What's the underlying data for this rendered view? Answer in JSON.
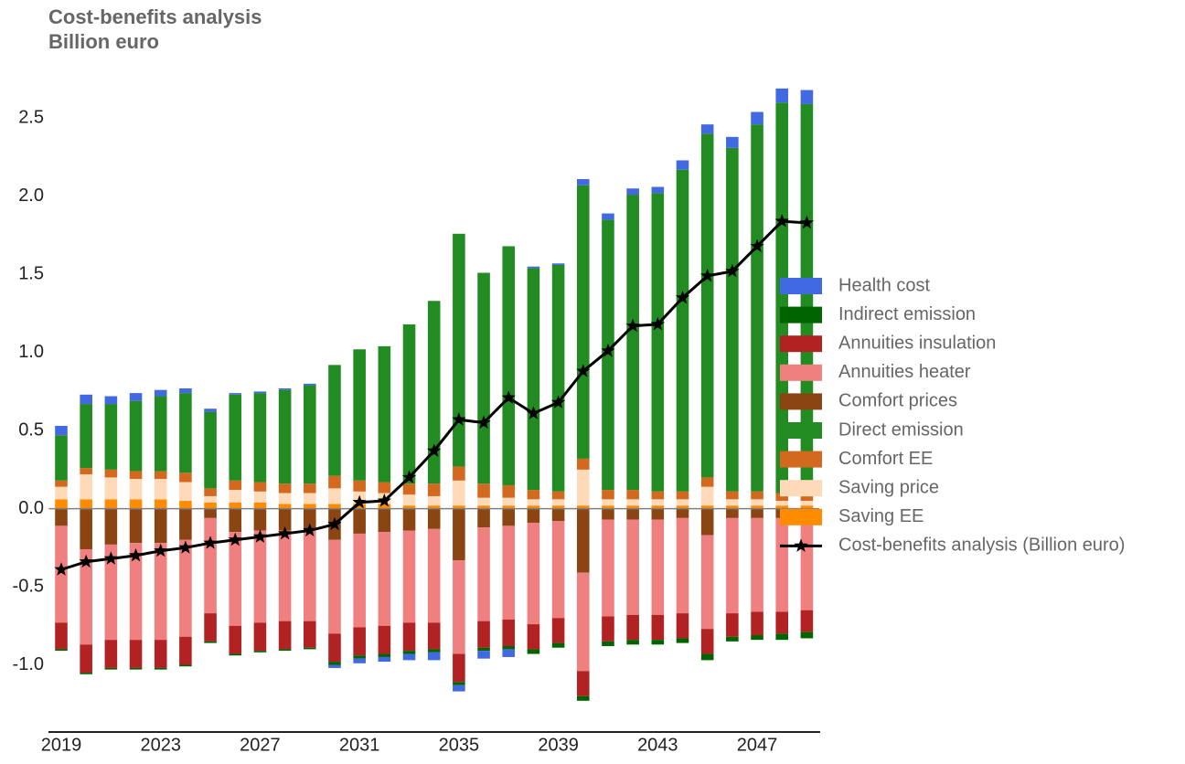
{
  "chart_data": {
    "type": "bar",
    "stacked": true,
    "title": "Cost-benefits analysis",
    "subtitle": "Billion euro",
    "categories": [
      2019,
      null,
      null,
      null,
      2023,
      null,
      null,
      null,
      2027,
      null,
      null,
      null,
      2031,
      null,
      null,
      null,
      2035,
      null,
      null,
      null,
      2039,
      null,
      null,
      null,
      2043,
      null,
      null,
      null,
      2047,
      null,
      null
    ],
    "series": [
      {
        "name": "Saving EE",
        "color": "#ff8c00",
        "values": [
          0.06,
          0.06,
          0.06,
          0.06,
          0.06,
          0.05,
          0.04,
          0.04,
          0.04,
          0.03,
          0.03,
          0.03,
          0.03,
          0.03,
          0.02,
          0.02,
          0.02,
          0.02,
          0.02,
          0.02,
          0.02,
          0.02,
          0.02,
          0.02,
          0.02,
          0.02,
          0.02,
          0.02,
          0.02,
          0.02,
          0.02
        ]
      },
      {
        "name": "Saving price",
        "color": "#ffdab9",
        "values": [
          0.08,
          0.16,
          0.14,
          0.13,
          0.13,
          0.12,
          0.04,
          0.08,
          0.07,
          0.07,
          0.07,
          0.1,
          0.08,
          0.07,
          0.07,
          0.06,
          0.16,
          0.05,
          0.05,
          0.04,
          0.04,
          0.23,
          0.04,
          0.04,
          0.04,
          0.04,
          0.12,
          0.04,
          0.04,
          0.03,
          0.03
        ]
      },
      {
        "name": "Comfort EE",
        "color": "#d2691e",
        "values": [
          0.04,
          0.04,
          0.05,
          0.05,
          0.05,
          0.06,
          0.05,
          0.06,
          0.06,
          0.06,
          0.06,
          0.08,
          0.07,
          0.07,
          0.07,
          0.08,
          0.09,
          0.09,
          0.08,
          0.06,
          0.05,
          0.07,
          0.06,
          0.06,
          0.05,
          0.05,
          0.06,
          0.05,
          0.05,
          0.05,
          0.05
        ]
      },
      {
        "name": "Direct emission",
        "color": "#228b22",
        "values": [
          0.29,
          0.41,
          0.42,
          0.45,
          0.48,
          0.51,
          0.49,
          0.55,
          0.57,
          0.6,
          0.63,
          0.71,
          0.84,
          0.87,
          1.02,
          1.17,
          1.49,
          1.35,
          1.53,
          1.42,
          1.45,
          1.75,
          1.73,
          1.89,
          1.91,
          2.06,
          2.2,
          2.2,
          2.35,
          2.5,
          2.49
        ]
      },
      {
        "name": "Comfort prices",
        "color": "#8b4513",
        "values": [
          -0.11,
          -0.26,
          -0.23,
          -0.22,
          -0.22,
          -0.2,
          -0.06,
          -0.15,
          -0.14,
          -0.14,
          -0.14,
          -0.2,
          -0.16,
          -0.15,
          -0.14,
          -0.13,
          -0.33,
          -0.12,
          -0.11,
          -0.09,
          -0.08,
          -0.41,
          -0.07,
          -0.07,
          -0.07,
          -0.06,
          -0.17,
          -0.06,
          -0.06,
          -0.06,
          -0.06
        ]
      },
      {
        "name": "Annuities heater",
        "color": "#f08080",
        "values": [
          -0.62,
          -0.61,
          -0.61,
          -0.62,
          -0.62,
          -0.62,
          -0.61,
          -0.6,
          -0.59,
          -0.58,
          -0.58,
          -0.6,
          -0.6,
          -0.6,
          -0.59,
          -0.6,
          -0.6,
          -0.6,
          -0.6,
          -0.65,
          -0.62,
          -0.63,
          -0.62,
          -0.61,
          -0.61,
          -0.61,
          -0.6,
          -0.61,
          -0.6,
          -0.6,
          -0.59
        ]
      },
      {
        "name": "Annuities insulation",
        "color": "#b22222",
        "values": [
          -0.17,
          -0.18,
          -0.18,
          -0.18,
          -0.18,
          -0.18,
          -0.18,
          -0.18,
          -0.18,
          -0.18,
          -0.17,
          -0.18,
          -0.18,
          -0.18,
          -0.18,
          -0.17,
          -0.18,
          -0.17,
          -0.17,
          -0.16,
          -0.16,
          -0.16,
          -0.16,
          -0.16,
          -0.16,
          -0.16,
          -0.16,
          -0.15,
          -0.15,
          -0.14,
          -0.14
        ]
      },
      {
        "name": "Indirect emission",
        "color": "#006400",
        "values": [
          -0.01,
          -0.01,
          -0.01,
          -0.01,
          -0.01,
          -0.01,
          -0.01,
          -0.01,
          -0.01,
          -0.01,
          -0.01,
          -0.02,
          -0.02,
          -0.02,
          -0.02,
          -0.02,
          -0.02,
          -0.02,
          -0.02,
          -0.03,
          -0.03,
          -0.03,
          -0.03,
          -0.03,
          -0.03,
          -0.03,
          -0.04,
          -0.03,
          -0.03,
          -0.04,
          -0.04
        ]
      },
      {
        "name": "Health cost",
        "color": "#4169e1",
        "values": [
          0.06,
          0.06,
          0.05,
          0.05,
          0.04,
          0.03,
          0.02,
          0.01,
          0.01,
          0.01,
          0.01,
          -0.02,
          -0.03,
          -0.03,
          -0.04,
          -0.05,
          -0.04,
          -0.05,
          -0.05,
          0.01,
          0.01,
          0.04,
          0.04,
          0.04,
          0.04,
          0.06,
          0.06,
          0.07,
          0.08,
          0.09,
          0.09
        ]
      },
      {
        "name": "Cost-benefits analysis (Billion euro)",
        "type": "line",
        "color": "#000000",
        "values": [
          -0.39,
          -0.34,
          -0.32,
          -0.3,
          -0.27,
          -0.25,
          -0.22,
          -0.2,
          -0.18,
          -0.16,
          -0.14,
          -0.1,
          0.04,
          0.05,
          0.2,
          0.37,
          0.57,
          0.55,
          0.71,
          0.61,
          0.68,
          0.88,
          1.01,
          1.17,
          1.18,
          1.35,
          1.49,
          1.52,
          1.68,
          1.84,
          1.83
        ]
      }
    ],
    "ylim": [
      -1.43,
      2.73
    ],
    "yticks": [
      {
        "value": -1,
        "label": "-1.0"
      },
      -0.5,
      {
        "value": 0,
        "label": "0.0"
      },
      0.5,
      {
        "value": 1,
        "label": "1.0"
      },
      1.5,
      {
        "value": 2,
        "label": "2.0"
      },
      2.5
    ],
    "grid": false,
    "legend": "right"
  }
}
